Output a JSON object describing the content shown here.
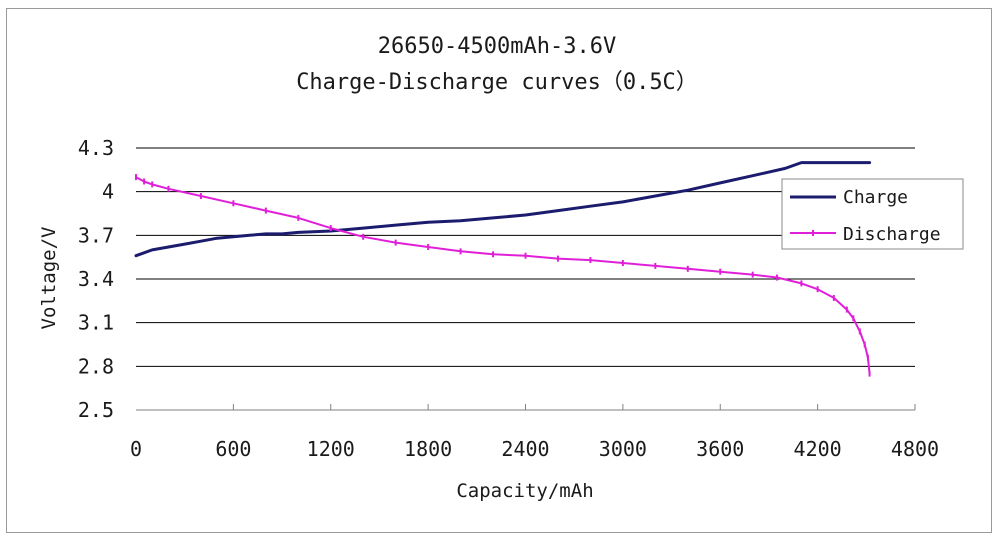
{
  "chart_data": {
    "type": "line",
    "title_lines": [
      "26650-4500mAh-3.6V",
      "Charge-Discharge curves（0.5C）"
    ],
    "xlabel": "Capacity/mAh",
    "ylabel": "Voltage/V",
    "xlim": [
      0,
      4800
    ],
    "ylim": [
      2.5,
      4.3
    ],
    "x_ticks": [
      0,
      600,
      1200,
      1800,
      2400,
      3000,
      3600,
      4200,
      4800
    ],
    "x_tick_labels": [
      "0",
      "600",
      "1200",
      "1800",
      "2400",
      "3000",
      "3600",
      "4200",
      "4800"
    ],
    "y_ticks": [
      2.5,
      2.8,
      3.1,
      3.4,
      3.7,
      4.0,
      4.3
    ],
    "y_tick_labels": [
      "2.5",
      "2.8",
      "3.1",
      "3.4",
      "3.7",
      "4",
      "4.3"
    ],
    "grid": "horizontal",
    "legend_position": "right",
    "series": [
      {
        "name": "Charge",
        "color": "#1c1c6e",
        "marker": "none",
        "points": [
          [
            0,
            3.56
          ],
          [
            100,
            3.6
          ],
          [
            200,
            3.62
          ],
          [
            300,
            3.64
          ],
          [
            400,
            3.66
          ],
          [
            500,
            3.68
          ],
          [
            600,
            3.69
          ],
          [
            700,
            3.7
          ],
          [
            800,
            3.71
          ],
          [
            900,
            3.71
          ],
          [
            1000,
            3.72
          ],
          [
            1200,
            3.73
          ],
          [
            1400,
            3.75
          ],
          [
            1600,
            3.77
          ],
          [
            1800,
            3.79
          ],
          [
            2000,
            3.8
          ],
          [
            2200,
            3.82
          ],
          [
            2400,
            3.84
          ],
          [
            2600,
            3.87
          ],
          [
            2800,
            3.9
          ],
          [
            3000,
            3.93
          ],
          [
            3200,
            3.97
          ],
          [
            3400,
            4.01
          ],
          [
            3600,
            4.06
          ],
          [
            3800,
            4.11
          ],
          [
            4000,
            4.16
          ],
          [
            4100,
            4.2
          ],
          [
            4300,
            4.2
          ],
          [
            4520,
            4.2
          ]
        ]
      },
      {
        "name": "Discharge",
        "color": "#e020d8",
        "marker": "small-tick",
        "points": [
          [
            0,
            4.1
          ],
          [
            50,
            4.07
          ],
          [
            100,
            4.05
          ],
          [
            200,
            4.02
          ],
          [
            400,
            3.97
          ],
          [
            600,
            3.92
          ],
          [
            800,
            3.87
          ],
          [
            1000,
            3.82
          ],
          [
            1200,
            3.75
          ],
          [
            1400,
            3.69
          ],
          [
            1600,
            3.65
          ],
          [
            1800,
            3.62
          ],
          [
            2000,
            3.59
          ],
          [
            2200,
            3.57
          ],
          [
            2400,
            3.56
          ],
          [
            2600,
            3.54
          ],
          [
            2800,
            3.53
          ],
          [
            3000,
            3.51
          ],
          [
            3200,
            3.49
          ],
          [
            3400,
            3.47
          ],
          [
            3600,
            3.45
          ],
          [
            3800,
            3.43
          ],
          [
            3950,
            3.41
          ],
          [
            4100,
            3.37
          ],
          [
            4200,
            3.33
          ],
          [
            4300,
            3.27
          ],
          [
            4380,
            3.19
          ],
          [
            4420,
            3.13
          ],
          [
            4460,
            3.04
          ],
          [
            4490,
            2.95
          ],
          [
            4510,
            2.86
          ],
          [
            4520,
            2.75
          ]
        ]
      }
    ]
  }
}
